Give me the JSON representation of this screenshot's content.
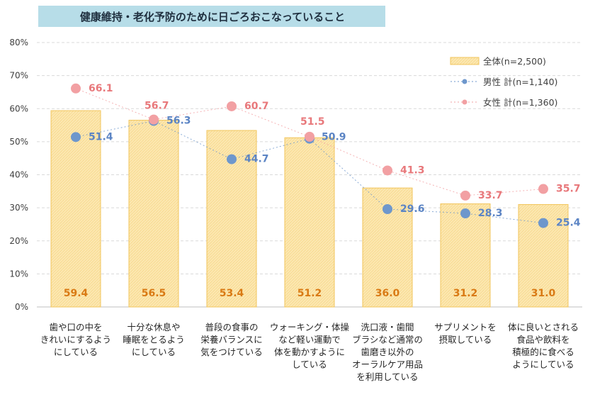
{
  "chart_data": {
    "type": "bar",
    "title": "健康維持・老化予防のために日ごろおこなっていること",
    "categories": [
      [
        "歯や口の中を",
        "きれいにするよう",
        "にしている"
      ],
      [
        "十分な休息や",
        "睡眠をとるよう",
        "にしている"
      ],
      [
        "普段の食事の",
        "栄養バランスに",
        "気をつけている"
      ],
      [
        "ウォーキング・体操",
        "など軽い運動で",
        "体を動かすように",
        "している"
      ],
      [
        "洗口液・歯間",
        "ブラシなど通常の",
        "歯磨き以外の",
        "オーラルケア用品",
        "を利用している"
      ],
      [
        "サプリメントを",
        "摂取している"
      ],
      [
        "体に良いとされる",
        "食品や飲料を",
        "積極的に食べる",
        "ようにしている"
      ]
    ],
    "series": [
      {
        "name": "全体(n=2,500)",
        "kind": "bar",
        "values": [
          59.4,
          56.5,
          53.4,
          51.2,
          36.0,
          31.2,
          31.0
        ]
      },
      {
        "name": "男性 計(n=1,140)",
        "kind": "dotted-line",
        "values": [
          51.4,
          56.3,
          44.7,
          50.9,
          29.6,
          28.3,
          25.4
        ]
      },
      {
        "name": "女性 計(n=1,360)",
        "kind": "dotted-line",
        "values": [
          66.1,
          56.7,
          60.7,
          51.5,
          41.3,
          33.7,
          35.7
        ]
      }
    ],
    "yticks": [
      "0%",
      "10%",
      "20%",
      "30%",
      "40%",
      "50%",
      "60%",
      "70%",
      "80%"
    ],
    "ylim": [
      0,
      80
    ],
    "grid": true,
    "legend": "top-right",
    "colors": {
      "bar_fill": "#FCE7B0",
      "bar_stroke": "#F2C55C",
      "bar_label": "#D97A14",
      "male": "#6E97CC",
      "female": "#F2A0A3",
      "male_label": "#5B84C4",
      "female_label": "#E8787B",
      "title_bg": "#B7DDE8",
      "grid": "#D9D9D9",
      "axis_text": "#404040"
    }
  }
}
